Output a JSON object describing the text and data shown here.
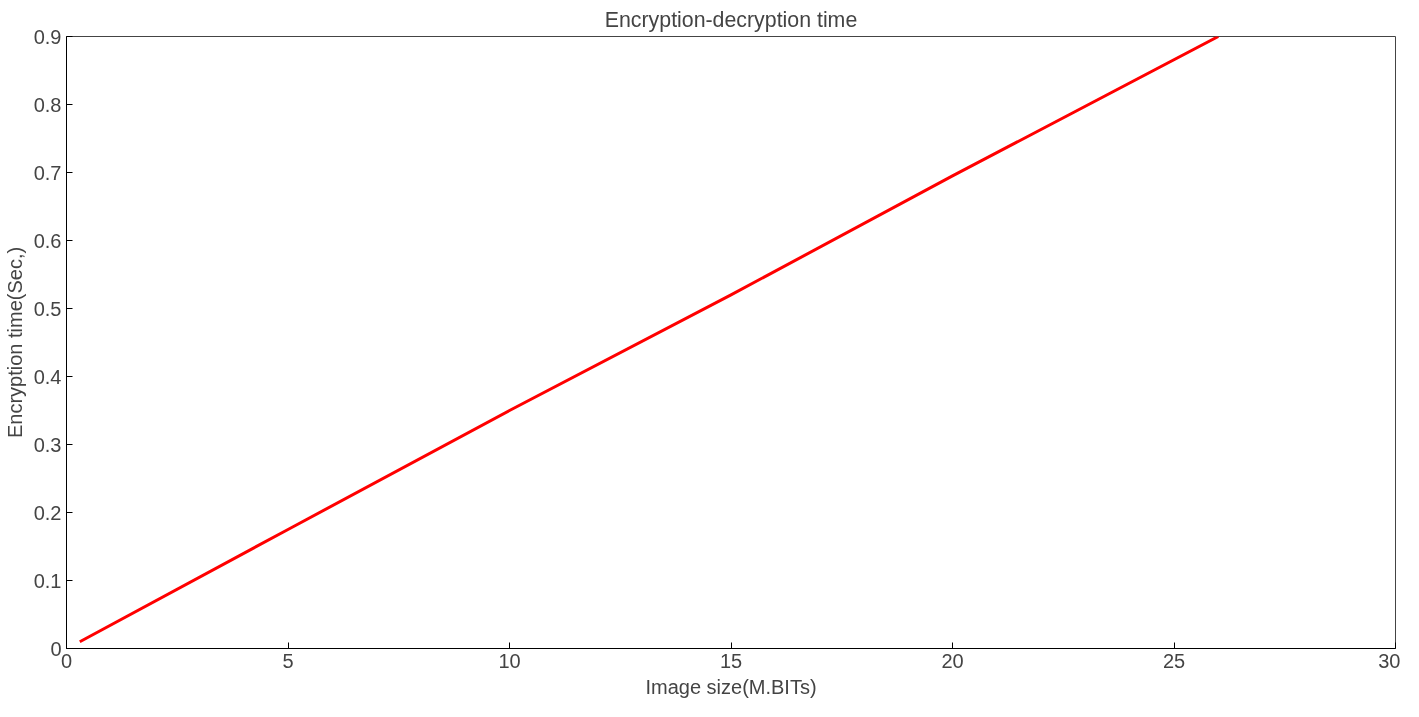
{
  "chart_data": {
    "type": "line",
    "title": "Encryption-decryption time",
    "xlabel": "Image size(M.BITs)",
    "ylabel": "Encryption time(Sec,)",
    "x": [
      0.3,
      5,
      10,
      15,
      20,
      26
    ],
    "series": [
      {
        "color": "#ff0000",
        "values": [
          0.01,
          0.175,
          0.35,
          0.52,
          0.695,
          0.9
        ]
      }
    ],
    "xlim": [
      0,
      30
    ],
    "xticks": [
      0,
      5,
      10,
      15,
      20,
      25,
      30
    ],
    "ylim": [
      0,
      0.9
    ],
    "yticks": [
      0,
      0.1,
      0.2,
      0.3,
      0.4,
      0.5,
      0.6,
      0.7,
      0.8,
      0.9
    ],
    "grid": false,
    "marker": "none",
    "line_style": "solid"
  }
}
